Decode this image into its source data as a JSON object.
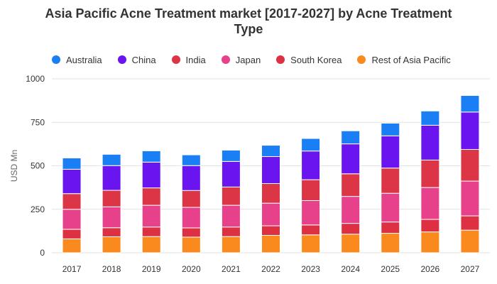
{
  "title_line1": "Asia Pacific Acne Treatment market [2017-2027] by Acne Treatment",
  "title_line2": "Type",
  "chart_data": {
    "type": "bar",
    "stacked": true,
    "title": "Asia Pacific Acne Treatment market [2017-2027] by Acne Treatment Type",
    "xlabel": "",
    "ylabel": "USD Mn",
    "ylim": [
      0,
      1000
    ],
    "yticks": [
      0,
      250,
      500,
      750,
      1000
    ],
    "grid": true,
    "legend_position": "top",
    "categories": [
      "2017",
      "2018",
      "2019",
      "2020",
      "2021",
      "2022",
      "2023",
      "2024",
      "2025",
      "2026",
      "2027"
    ],
    "series": [
      {
        "name": "Rest of Asia Pacific",
        "color": "#fa8a1d",
        "values": [
          80,
          92,
          93,
          90,
          93,
          100,
          103,
          107,
          112,
          120,
          130
        ]
      },
      {
        "name": "South Korea",
        "color": "#dd3042",
        "values": [
          55,
          52,
          55,
          53,
          55,
          55,
          57,
          62,
          65,
          72,
          82
        ]
      },
      {
        "name": "Japan",
        "color": "#e8418b",
        "values": [
          115,
          120,
          125,
          118,
          125,
          130,
          140,
          155,
          165,
          183,
          200
        ]
      },
      {
        "name": "India",
        "color": "#dc3545",
        "values": [
          90,
          95,
          100,
          97,
          105,
          113,
          120,
          130,
          145,
          158,
          182
        ]
      },
      {
        "name": "China",
        "color": "#6a14f0",
        "values": [
          140,
          142,
          148,
          143,
          147,
          155,
          165,
          172,
          185,
          200,
          215
        ]
      },
      {
        "name": "Australia",
        "color": "#1a7ff5",
        "values": [
          65,
          65,
          65,
          62,
          65,
          65,
          72,
          75,
          73,
          82,
          95
        ]
      }
    ]
  },
  "legend": [
    {
      "label": "Australia",
      "color": "#1a7ff5"
    },
    {
      "label": "China",
      "color": "#6a14f0"
    },
    {
      "label": "India",
      "color": "#dc3545"
    },
    {
      "label": "Japan",
      "color": "#e8418b"
    },
    {
      "label": "South Korea",
      "color": "#dd3042"
    },
    {
      "label": "Rest of Asia Pacific",
      "color": "#fa8a1d"
    }
  ]
}
